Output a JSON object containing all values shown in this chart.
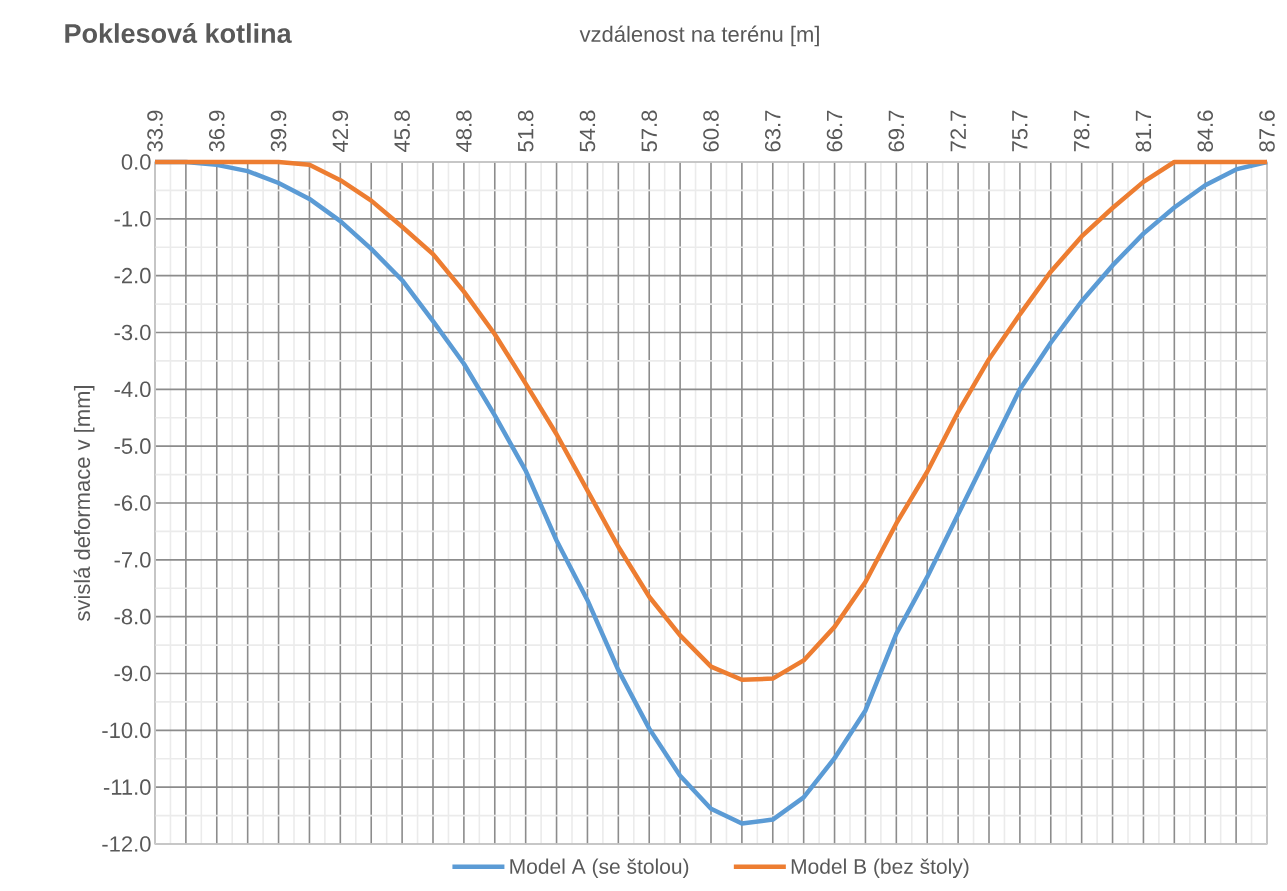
{
  "chart_data": {
    "type": "line",
    "title": "Poklesová kotlina",
    "xlabel": "vzdálenost na terénu [m]",
    "ylabel": "svislá deformace v [mm]",
    "categories": [
      "33.9",
      null,
      "36.9",
      null,
      "39.9",
      null,
      "42.9",
      null,
      "45.8",
      null,
      "48.8",
      null,
      "51.8",
      null,
      "54.8",
      null,
      "57.8",
      null,
      "60.8",
      null,
      "63.7",
      null,
      "66.7",
      null,
      "69.7",
      null,
      "72.7",
      null,
      "75.7",
      null,
      "78.7",
      null,
      "81.7",
      null,
      "84.6",
      null,
      "87.6"
    ],
    "series": [
      {
        "name": "Model A (se štolou)",
        "color": "#5b9bd5",
        "values": [
          0,
          0,
          -0.05,
          -0.16,
          -0.37,
          -0.65,
          -1.04,
          -1.53,
          -2.08,
          -2.8,
          -3.55,
          -4.46,
          -5.43,
          -6.66,
          -7.71,
          -8.94,
          -9.97,
          -10.8,
          -11.38,
          -11.64,
          -11.57,
          -11.18,
          -10.49,
          -9.65,
          -8.3,
          -7.3,
          -6.2,
          -5.1,
          -4.0,
          -3.18,
          -2.45,
          -1.82,
          -1.26,
          -0.8,
          -0.41,
          -0.13,
          0
        ]
      },
      {
        "name": "Model B (bez štoly)",
        "color": "#ed7d31",
        "values": [
          0,
          0,
          0,
          0,
          0,
          -0.05,
          -0.32,
          -0.68,
          -1.14,
          -1.62,
          -2.28,
          -3.03,
          -3.9,
          -4.79,
          -5.78,
          -6.77,
          -7.65,
          -8.33,
          -8.88,
          -9.11,
          -9.09,
          -8.77,
          -8.18,
          -7.39,
          -6.36,
          -5.45,
          -4.4,
          -3.47,
          -2.68,
          -1.93,
          -1.31,
          -0.81,
          -0.35,
          0,
          0,
          0,
          0
        ]
      }
    ],
    "ylim": [
      -12,
      0
    ],
    "yticks": [
      {
        "value": -12,
        "label": "-12.0"
      },
      {
        "value": -11,
        "label": "-11.0"
      },
      {
        "value": -10,
        "label": "-10.0"
      },
      {
        "value": -9,
        "label": "-9.0"
      },
      {
        "value": -8,
        "label": "-8.0"
      },
      {
        "value": -7,
        "label": "-7.0"
      },
      {
        "value": -6,
        "label": "-6.0"
      },
      {
        "value": -5,
        "label": "-5.0"
      },
      {
        "value": -4,
        "label": "-4.0"
      },
      {
        "value": -3,
        "label": "-3.0"
      },
      {
        "value": -2,
        "label": "-2.0"
      },
      {
        "value": -1,
        "label": "-1.0"
      },
      {
        "value": 0,
        "label": "0.0"
      }
    ],
    "grid": true,
    "legend": "bottom"
  }
}
